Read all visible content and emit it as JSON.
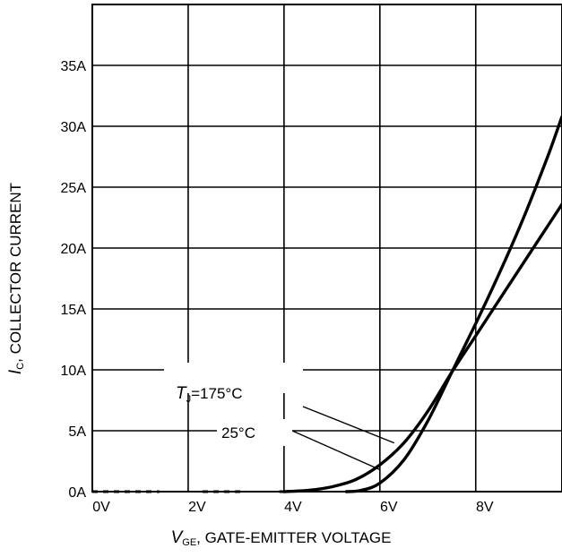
{
  "chart_data": {
    "type": "line",
    "xlim": [
      0,
      9.8
    ],
    "ylim": [
      0,
      40
    ],
    "x_ticks": [
      0,
      2,
      4,
      6,
      8
    ],
    "x_tick_labels": [
      "0V",
      "2V",
      "4V",
      "6V",
      "8V"
    ],
    "y_ticks": [
      0,
      5,
      10,
      15,
      20,
      25,
      30,
      35
    ],
    "y_tick_labels": [
      "0A",
      "5A",
      "10A",
      "15A",
      "20A",
      "25A",
      "30A",
      "35A"
    ],
    "grid": true,
    "xlabel": {
      "symbol": "V",
      "subscript": "GE",
      "text": ", GATE-EMITTER VOLTAGE"
    },
    "ylabel": {
      "symbol": "I",
      "subscript": "C",
      "text": ", COLLECTOR CURRENT"
    },
    "series": [
      {
        "name": "T_J=175°C",
        "label_symbol": "T",
        "label_subscript": "J",
        "label_text": "=175°C",
        "x": [
          4.0,
          4.5,
          5.0,
          5.5,
          6.0,
          6.5,
          7.0,
          7.5,
          8.0,
          8.5,
          9.0,
          9.5,
          9.8
        ],
        "y": [
          0.0,
          0.1,
          0.4,
          1.0,
          2.2,
          4.0,
          6.6,
          9.8,
          12.8,
          15.8,
          18.8,
          21.8,
          23.6
        ]
      },
      {
        "name": "25°C",
        "label_text": "25°C",
        "x": [
          5.3,
          5.6,
          6.0,
          6.5,
          7.0,
          7.5,
          8.0,
          8.5,
          9.0,
          9.5,
          9.8
        ],
        "y": [
          0.0,
          0.1,
          0.7,
          2.6,
          5.8,
          9.8,
          13.8,
          18.0,
          22.5,
          27.5,
          30.8
        ]
      }
    ],
    "annotation_targets": [
      {
        "series": 0,
        "x": 6.3,
        "y": 4.0
      },
      {
        "series": 1,
        "x": 6.0,
        "y": 1.8
      }
    ]
  }
}
